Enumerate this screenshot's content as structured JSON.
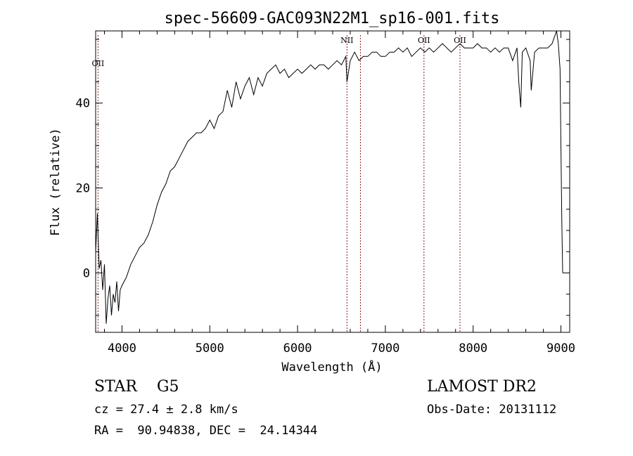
{
  "chart_data": {
    "type": "line",
    "title": "spec-56609-GAC093N22M1_sp16-001.fits",
    "xlabel": "Wavelength (Å)",
    "ylabel": "Flux (relative)",
    "xlim": [
      3700,
      9100
    ],
    "ylim": [
      -14,
      57
    ],
    "x_ticks": [
      4000,
      5000,
      6000,
      7000,
      8000,
      9000
    ],
    "y_ticks": [
      0,
      20,
      40
    ],
    "grid": false,
    "line_color": "#000000",
    "marker_color": "#8b1a1a",
    "series": [
      {
        "x": [
          3700,
          3720,
          3740,
          3760,
          3780,
          3800,
          3820,
          3840,
          3860,
          3880,
          3900,
          3920,
          3940,
          3960,
          3980,
          4000,
          4050,
          4100,
          4150,
          4200,
          4250,
          4300,
          4350,
          4400,
          4450,
          4500,
          4550,
          4600,
          4650,
          4700,
          4750,
          4800,
          4850,
          4900,
          4950,
          5000,
          5050,
          5100,
          5150,
          5200,
          5250,
          5300,
          5350,
          5400,
          5450,
          5500,
          5550,
          5600,
          5650,
          5700,
          5750,
          5800,
          5850,
          5900,
          5950,
          6000,
          6050,
          6100,
          6150,
          6200,
          6250,
          6300,
          6350,
          6400,
          6450,
          6500,
          6550,
          6563,
          6600,
          6650,
          6700,
          6750,
          6800,
          6850,
          6900,
          6950,
          7000,
          7050,
          7100,
          7150,
          7200,
          7250,
          7300,
          7350,
          7400,
          7450,
          7500,
          7550,
          7600,
          7650,
          7700,
          7750,
          7800,
          7850,
          7900,
          7950,
          8000,
          8050,
          8100,
          8150,
          8200,
          8250,
          8300,
          8350,
          8400,
          8450,
          8500,
          8520,
          8542,
          8560,
          8600,
          8650,
          8662,
          8700,
          8750,
          8800,
          8850,
          8900,
          8950,
          8970,
          8990,
          9000,
          9010,
          9020
        ],
        "y": [
          5,
          14,
          1,
          3,
          -4,
          2,
          -12,
          -6,
          -3,
          -10,
          -5,
          -7,
          -2,
          -9,
          -4,
          -3,
          -1,
          2,
          4,
          6,
          7,
          9,
          12,
          16,
          19,
          21,
          24,
          25,
          27,
          29,
          31,
          32,
          33,
          33,
          34,
          36,
          34,
          37,
          38,
          43,
          39,
          45,
          41,
          44,
          46,
          42,
          46,
          44,
          47,
          48,
          49,
          47,
          48,
          46,
          47,
          48,
          47,
          48,
          49,
          48,
          49,
          49,
          48,
          49,
          50,
          49,
          51,
          45,
          50,
          52,
          50,
          51,
          51,
          52,
          52,
          51,
          51,
          52,
          52,
          53,
          52,
          53,
          51,
          52,
          53,
          52,
          53,
          52,
          53,
          54,
          53,
          52,
          53,
          54,
          53,
          53,
          53,
          54,
          53,
          53,
          52,
          53,
          52,
          53,
          53,
          50,
          53,
          45,
          39,
          52,
          53,
          50,
          43,
          52,
          53,
          53,
          53,
          54,
          57,
          54,
          48,
          30,
          12,
          0
        ]
      }
    ],
    "line_markers": [
      {
        "label": "OII",
        "x": 3727
      },
      {
        "label": "NII",
        "x": 6563
      },
      {
        "label": "",
        "x": 6716
      },
      {
        "label": "OII",
        "x": 7440
      },
      {
        "label": "OII",
        "x": 7850
      }
    ]
  },
  "info": {
    "class_line": "STAR    G5",
    "redshift_line": "cz = 27.4 ± 2.8 km/s",
    "coord_line": "RA =  90.94838, DEC =  24.14344",
    "survey_line": "LAMOST DR2",
    "obsdate_line": "Obs-Date: 20131112"
  }
}
